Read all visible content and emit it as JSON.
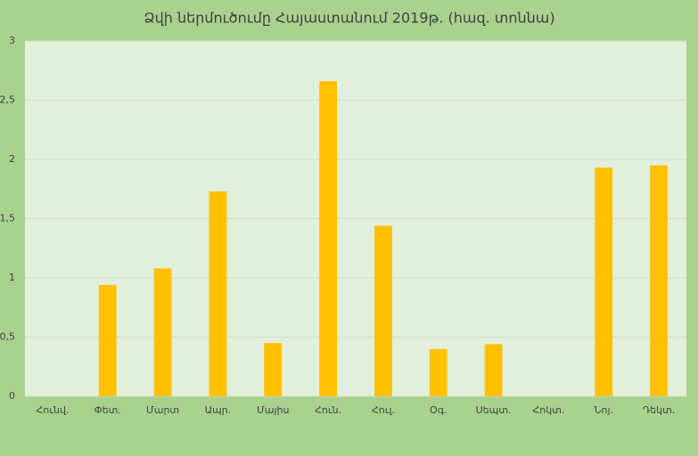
{
  "chart_data": {
    "type": "bar",
    "title": "Ձվի ներմուծումը Հայաստանում 2019թ. (հազ. տոննա)",
    "categories": [
      "Հունվ.",
      "Փետ.",
      "Մարտ",
      "Ապր.",
      "Մայիս",
      "Հուն.",
      "Հուլ.",
      "Օգ.",
      "Սեպտ.",
      "Հոկտ.",
      "Նոյ.",
      "Դեկտ."
    ],
    "values": [
      0,
      0.94,
      1.08,
      1.73,
      0.45,
      2.66,
      1.44,
      0.4,
      0.44,
      0,
      1.93,
      1.95
    ],
    "color": "#ffc000",
    "ylim": [
      0,
      3
    ],
    "yticks": [
      0,
      {
        "value": 0.5,
        "label": "0,5"
      },
      1,
      {
        "value": 1.5,
        "label": "1,5"
      },
      2,
      {
        "value": 2.5,
        "label": "2,5"
      },
      3
    ],
    "grid": true
  }
}
